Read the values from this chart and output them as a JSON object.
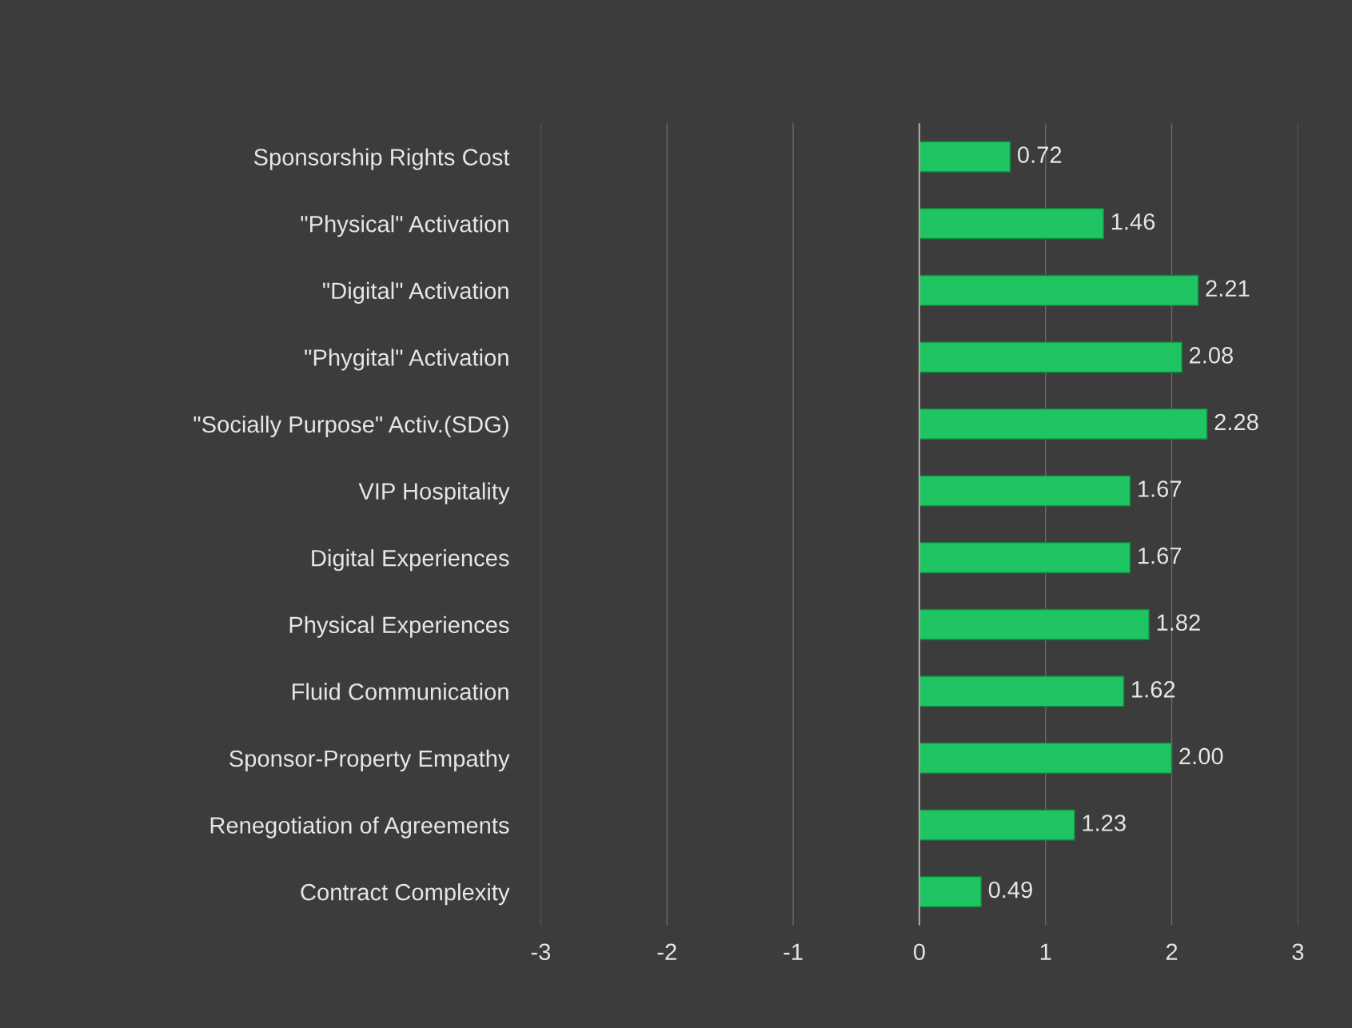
{
  "chart_data": {
    "type": "bar",
    "orientation": "horizontal",
    "categories": [
      "Sponsorship Rights Cost",
      "\"Physical\" Activation",
      "\"Digital\" Activation",
      "\"Phygital\" Activation",
      "\"Socially Purpose\" Activ.(SDG)",
      "VIP Hospitality",
      "Digital Experiences",
      "Physical Experiences",
      "Fluid Communication",
      "Sponsor-Property Empathy",
      "Renegotiation of Agreements",
      "Contract Complexity"
    ],
    "values": [
      0.72,
      1.46,
      2.21,
      2.08,
      2.28,
      1.67,
      1.67,
      1.82,
      1.62,
      2.0,
      1.23,
      0.49
    ],
    "value_labels": [
      "0.72",
      "1.46",
      "2.21",
      "2.08",
      "2.28",
      "1.67",
      "1.67",
      "1.82",
      "1.62",
      "2.00",
      "1.23",
      "0.49"
    ],
    "color": "#1fc463",
    "xlim": [
      -3,
      3
    ],
    "xticks": [
      -3,
      -2,
      -1,
      0,
      1,
      2,
      3
    ],
    "grid": "x"
  }
}
